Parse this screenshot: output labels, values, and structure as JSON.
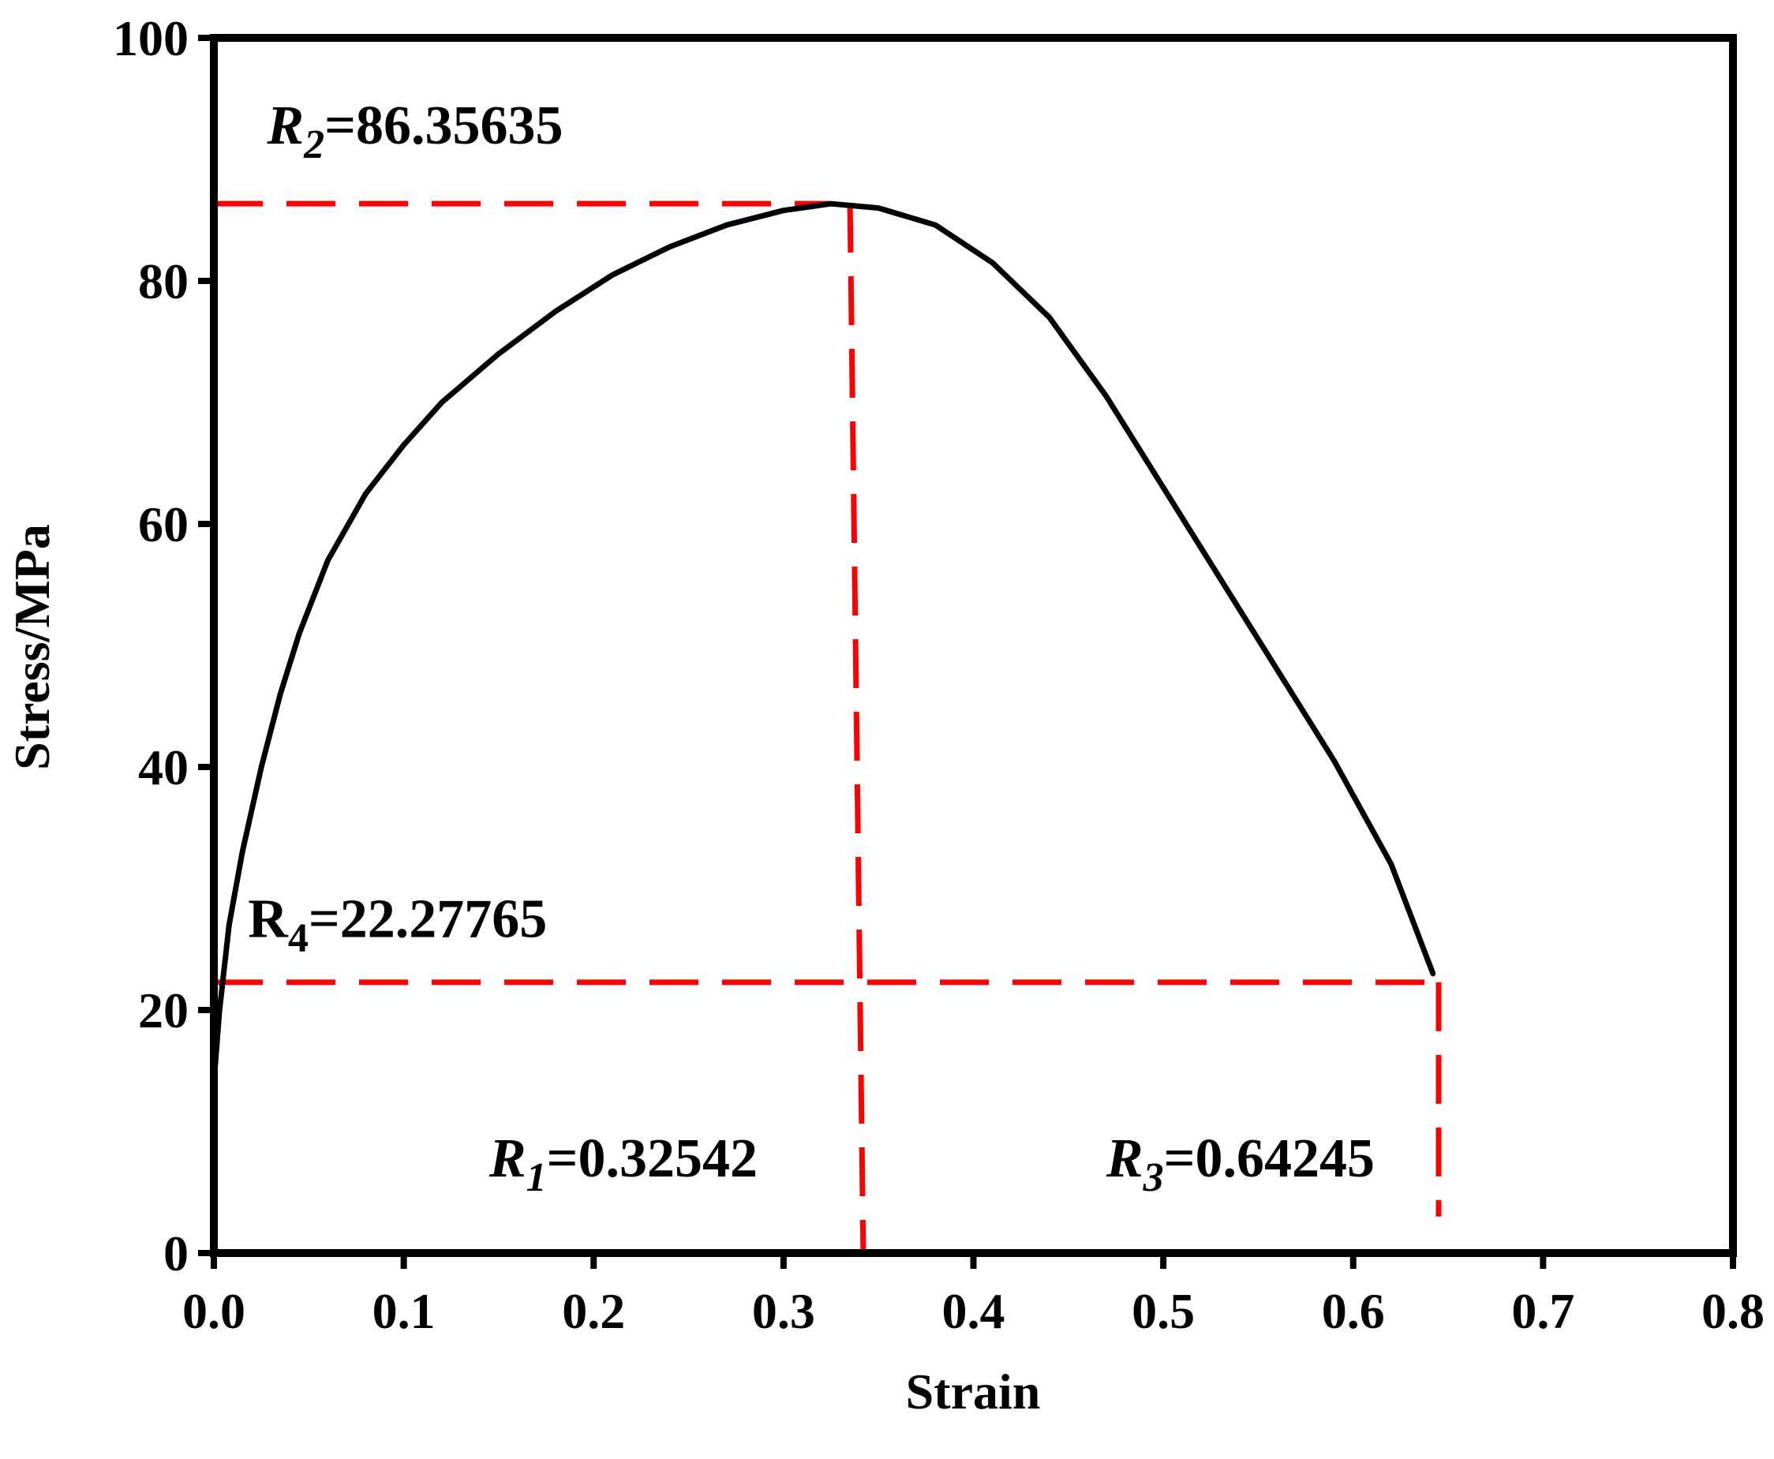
{
  "chart_data": {
    "type": "line",
    "xlabel": "Strain",
    "ylabel": "Stress/MPa",
    "xlim": [
      0.0,
      0.8
    ],
    "ylim": [
      0,
      100
    ],
    "x_ticks": [
      "0.0",
      "0.1",
      "0.2",
      "0.3",
      "0.4",
      "0.5",
      "0.6",
      "0.7",
      "0.8"
    ],
    "y_ticks": [
      "0",
      "20",
      "40",
      "60",
      "80",
      "100"
    ],
    "grid": false,
    "series": [
      {
        "color": "#000000",
        "points": [
          [
            0.0,
            14
          ],
          [
            0.003,
            20
          ],
          [
            0.008,
            27
          ],
          [
            0.015,
            33
          ],
          [
            0.025,
            40
          ],
          [
            0.035,
            46
          ],
          [
            0.045,
            51
          ],
          [
            0.06,
            57
          ],
          [
            0.08,
            62.5
          ],
          [
            0.1,
            66.5
          ],
          [
            0.12,
            70
          ],
          [
            0.15,
            74
          ],
          [
            0.18,
            77.5
          ],
          [
            0.21,
            80.5
          ],
          [
            0.24,
            82.8
          ],
          [
            0.27,
            84.6
          ],
          [
            0.3,
            85.8
          ],
          [
            0.325,
            86.35
          ],
          [
            0.35,
            86.0
          ],
          [
            0.38,
            84.6
          ],
          [
            0.41,
            81.5
          ],
          [
            0.44,
            77
          ],
          [
            0.47,
            70.5
          ],
          [
            0.5,
            63
          ],
          [
            0.53,
            55.5
          ],
          [
            0.56,
            48
          ],
          [
            0.59,
            40.5
          ],
          [
            0.62,
            32
          ],
          [
            0.642,
            23
          ]
        ]
      }
    ],
    "reference_lines": [
      {
        "color": "#ff0000",
        "style": "dashed",
        "points": [
          [
            0.0,
            86.35635
          ],
          [
            0.325,
            86.35635
          ]
        ]
      },
      {
        "color": "#ff0000",
        "style": "dashed",
        "points": [
          [
            0.335,
            86.35635
          ],
          [
            0.342,
            0
          ]
        ]
      },
      {
        "color": "#ff0000",
        "style": "dashed",
        "points": [
          [
            0.0,
            22.27765
          ],
          [
            0.645,
            22.27765
          ]
        ]
      },
      {
        "color": "#ff0000",
        "style": "dashed",
        "points": [
          [
            0.645,
            22.27765
          ],
          [
            0.645,
            3
          ]
        ]
      }
    ],
    "annotations": [
      {
        "sym": "R",
        "sub": "2",
        "text": "=86.35635",
        "italic": true,
        "x": 0.028,
        "y": 91.3
      },
      {
        "sym": "R",
        "sub": "4",
        "text": "=22.27765",
        "italic": false,
        "x": 0.018,
        "y": 26
      },
      {
        "sym": "R",
        "sub": "1",
        "text": "=0.32542",
        "italic": true,
        "x": 0.145,
        "y": 6.3
      },
      {
        "sym": "R",
        "sub": "3",
        "text": "=0.64245",
        "italic": true,
        "x": 0.47,
        "y": 6.3
      }
    ]
  }
}
